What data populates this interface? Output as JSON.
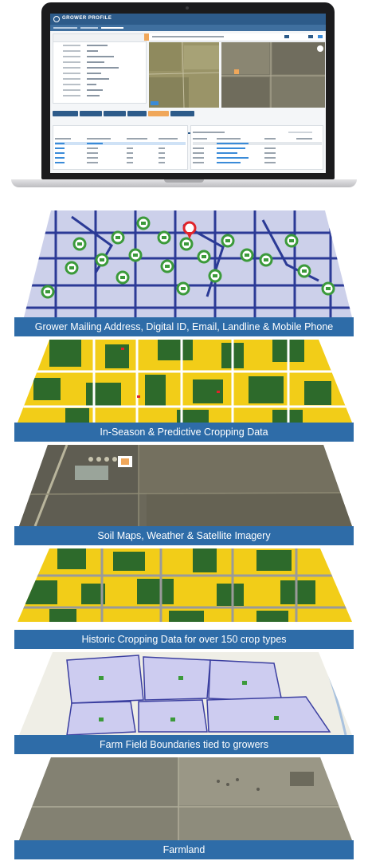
{
  "laptop": {
    "app_logo": "GROWER PROFILE",
    "header_right": "",
    "subheader": ""
  },
  "layers": [
    {
      "label": "Grower Mailing Address, Digital ID, Email, Landline & Mobile Phone"
    },
    {
      "label": "In-Season & Predictive Cropping Data"
    },
    {
      "label": "Soil Maps, Weather & Satellite Imagery"
    },
    {
      "label": "Historic Cropping Data for over 150 crop types"
    },
    {
      "label": "Farm Field Boundaries tied to growers"
    },
    {
      "label": "Farmland"
    }
  ],
  "colors": {
    "banner": "#2e6ca8",
    "crop_yellow": "#f2cd18",
    "crop_green": "#2d6a2b",
    "boundary_blue": "#2b3a96",
    "marker_green": "#3b9a3a",
    "marker_red": "#e0242a"
  }
}
